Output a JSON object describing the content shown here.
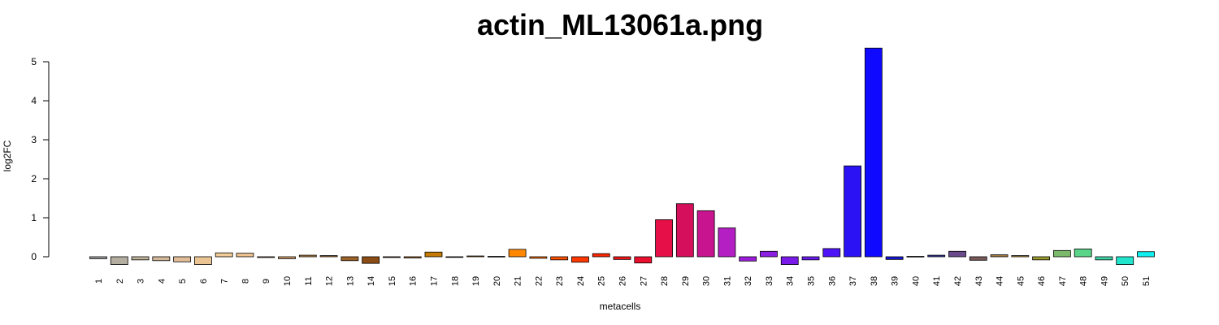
{
  "chart_data": {
    "type": "bar",
    "title": "actin_ML13061a.png",
    "xlabel": "metacells",
    "ylabel": "log2FC",
    "ylim": [
      -0.3,
      5.4
    ],
    "yticks": [
      0,
      1,
      2,
      3,
      4,
      5
    ],
    "grid": false,
    "legend": "none",
    "categories": [
      "1",
      "2",
      "3",
      "4",
      "5",
      "6",
      "7",
      "8",
      "9",
      "10",
      "11",
      "12",
      "13",
      "14",
      "15",
      "16",
      "17",
      "18",
      "19",
      "20",
      "21",
      "22",
      "23",
      "24",
      "25",
      "26",
      "27",
      "28",
      "29",
      "30",
      "31",
      "32",
      "33",
      "34",
      "35",
      "36",
      "37",
      "38",
      "39",
      "40",
      "41",
      "42",
      "43",
      "44",
      "45",
      "46",
      "47",
      "48",
      "49",
      "50",
      "51"
    ],
    "values": [
      -0.05,
      -0.2,
      -0.08,
      -0.1,
      -0.13,
      -0.2,
      0.1,
      0.09,
      -0.02,
      -0.05,
      0.04,
      0.03,
      -0.1,
      -0.17,
      -0.02,
      -0.03,
      0.12,
      -0.01,
      0.02,
      0.01,
      0.19,
      -0.04,
      -0.08,
      -0.14,
      0.08,
      -0.07,
      -0.16,
      0.95,
      1.36,
      1.18,
      0.74,
      -0.11,
      0.14,
      -0.2,
      -0.08,
      0.21,
      2.33,
      5.35,
      -0.07,
      0.01,
      0.04,
      0.14,
      -0.09,
      0.05,
      0.03,
      -0.08,
      0.16,
      0.2,
      -0.08,
      -0.2,
      0.13
    ],
    "colors": [
      "#a3a3a3",
      "#b3aea0",
      "#c2b59e",
      "#d4b89a",
      "#e2be98",
      "#ebc493",
      "#f3cd98",
      "#efc28f",
      "#e3b181",
      "#d19c68",
      "#c1884a",
      "#b17636",
      "#9e6329",
      "#8c4c15",
      "#8c4c15",
      "#a35f0c",
      "#c47a06",
      "#db8c00",
      "#e69700",
      "#f09c00",
      "#ff8800",
      "#ff6a00",
      "#ff5200",
      "#ff3800",
      "#ff2600",
      "#f91418",
      "#e8102e",
      "#e60f47",
      "#d60f5c",
      "#c8148e",
      "#b31fc3",
      "#9b1dda",
      "#8a1fe3",
      "#7a1ae8",
      "#6a1df0",
      "#4d12f5",
      "#2a12f5",
      "#0f0aff",
      "#1818d4",
      "#2a2aa8",
      "#3b3ba0",
      "#6a4a8a",
      "#7a5a5a",
      "#a07a40",
      "#b89030",
      "#9a9a30",
      "#7aba6a",
      "#5ad488",
      "#40d4a8",
      "#20e4cc",
      "#10f0f0"
    ]
  }
}
